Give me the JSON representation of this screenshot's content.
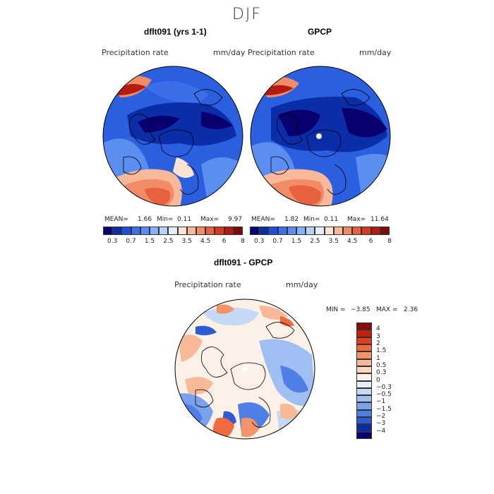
{
  "main_title": "DJF",
  "panel_left": {
    "title": "dflt091 (yrs 1-1)",
    "variable": "Precipitation rate",
    "units": "mm/day",
    "mean_label": "MEAN=",
    "mean_value": "1.66",
    "min_label": "Min=",
    "min_value": "0.11",
    "max_label": "Max=",
    "max_value": "9.97"
  },
  "panel_right": {
    "title": "GPCP",
    "variable": "Precipitation rate",
    "units": "mm/day",
    "mean_label": "MEAN=",
    "mean_value": "1.82",
    "min_label": "Min=",
    "min_value": "0.11",
    "max_label": "Max=",
    "max_value": "11.64"
  },
  "colorbar_top": {
    "ticks": [
      "0.3",
      "0.7",
      "1.5",
      "2.5",
      "3.5",
      "4.5",
      "6",
      "8"
    ],
    "colors": [
      "#08006e",
      "#0b2ea8",
      "#1f4fd6",
      "#3b6ee8",
      "#5b8ef0",
      "#87b0f5",
      "#b9d2f8",
      "#e3ecfb",
      "#fbe3d4",
      "#f7b99a",
      "#f28c66",
      "#e9603e",
      "#d63a22",
      "#b51b12",
      "#7c0a06"
    ]
  },
  "panel_diff": {
    "title": "dflt091 - GPCP",
    "variable": "Precipitation rate",
    "units": "mm/day",
    "min_label": "MIN =",
    "min_value": "−3.85",
    "max_label": "MAX =",
    "max_value": "2.36"
  },
  "colorbar_diff": {
    "labels": [
      "4",
      "3",
      "2",
      "1.5",
      "1",
      "0.5",
      "0.3",
      "0",
      "−0.3",
      "−0.5",
      "−1",
      "−1.5",
      "−2",
      "−3",
      "−4"
    ],
    "colors": [
      "#8b0a06",
      "#c2200f",
      "#e0401f",
      "#ef6a3e",
      "#f49368",
      "#f8b998",
      "#fbd6c2",
      "#fdf0e6",
      "#e6eefb",
      "#c5d8f6",
      "#9fbef2",
      "#7aa2ec",
      "#4f7fe4",
      "#2c5bd4",
      "#0b2aa6",
      "#07006e"
    ]
  },
  "colors": {
    "ocean_blue": "#1f4fd6",
    "dark_blue": "#08006e",
    "red": "#d63a22"
  }
}
